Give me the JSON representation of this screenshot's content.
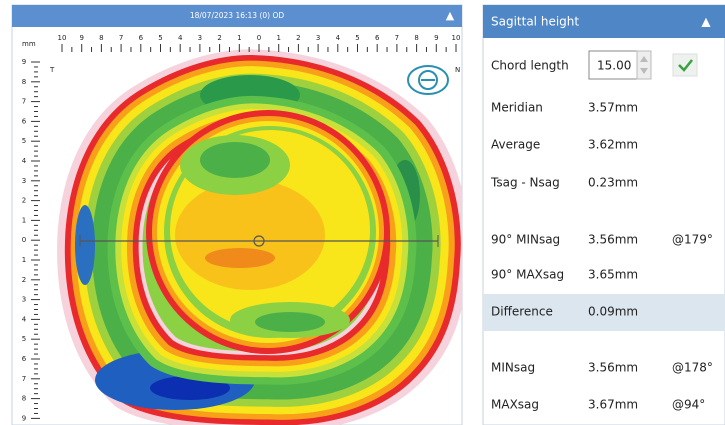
{
  "map_panel": {
    "header": "18/07/2023 16:13 (0) OD",
    "collapse_icon": "▲",
    "ruler_unit": "mm",
    "top_ruler": [
      "10",
      "9",
      "8",
      "7",
      "6",
      "5",
      "4",
      "3",
      "2",
      "1",
      "0",
      "1",
      "2",
      "3",
      "4",
      "5",
      "6",
      "7",
      "8",
      "9",
      "10"
    ],
    "left_ruler": [
      "9",
      "8",
      "7",
      "6",
      "5",
      "4",
      "3",
      "2",
      "1",
      "0",
      "1",
      "2",
      "3",
      "4",
      "5",
      "6",
      "7",
      "8",
      "9"
    ],
    "temporal_label": "T",
    "nasal_label": "N"
  },
  "sag_panel": {
    "title": "Sagittal height",
    "collapse_icon": "▲",
    "chord_label": "Chord length",
    "chord_value": "15.00",
    "rows": [
      {
        "label": "Meridian",
        "value": "3.57mm"
      },
      {
        "label": "Average",
        "value": "3.62mm"
      },
      {
        "label": "Tsag - Nsag",
        "value": "0.23mm"
      },
      {
        "label": "90° MINsag",
        "value": "3.56mm",
        "axis": "@179°"
      },
      {
        "label": "90° MAXsag",
        "value": "3.65mm"
      },
      {
        "label": "Difference",
        "value": "0.09mm"
      },
      {
        "label": "MINsag",
        "value": "3.56mm",
        "axis": "@178°"
      },
      {
        "label": "MAXsag",
        "value": "3.67mm",
        "axis": "@94°"
      }
    ]
  }
}
